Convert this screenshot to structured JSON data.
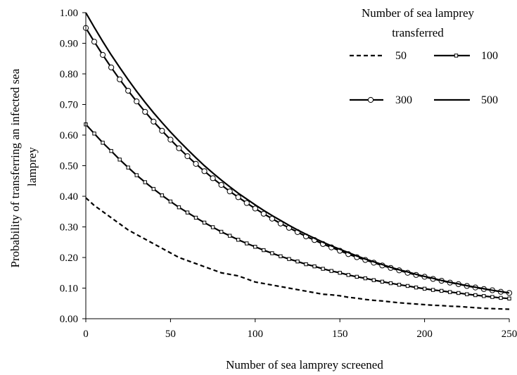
{
  "chart_data": {
    "type": "line",
    "title": "",
    "xlabel": "Number of sea lamprey screened",
    "ylabel": "Probability of transferring an infected sea lamprey",
    "xlim": [
      0,
      250
    ],
    "ylim": [
      0,
      1
    ],
    "xticks": [
      "0",
      "50",
      "100",
      "150",
      "200",
      "250"
    ],
    "yticks": [
      "0.00",
      "0.10",
      "0.20",
      "0.30",
      "0.40",
      "0.50",
      "0.60",
      "0.70",
      "0.80",
      "0.90",
      "1.00"
    ],
    "grid": false,
    "legend": {
      "title_lines": [
        "Number of sea lamprey",
        "transferred"
      ],
      "placement": "top-right"
    },
    "x": [
      0,
      5,
      10,
      15,
      20,
      25,
      30,
      35,
      40,
      45,
      50,
      55,
      60,
      65,
      70,
      75,
      80,
      85,
      90,
      95,
      100,
      105,
      110,
      115,
      120,
      125,
      130,
      135,
      140,
      145,
      150,
      155,
      160,
      165,
      170,
      175,
      180,
      185,
      190,
      195,
      200,
      205,
      210,
      215,
      220,
      225,
      230,
      235,
      240,
      245,
      250
    ],
    "series": [
      {
        "name": "50",
        "style": "dashed",
        "marker": "none",
        "values": [
          0.395,
          0.37,
          0.35,
          0.33,
          0.31,
          0.29,
          0.275,
          0.26,
          0.245,
          0.23,
          0.215,
          0.2,
          0.19,
          0.18,
          0.17,
          0.16,
          0.15,
          0.145,
          0.14,
          0.13,
          0.12,
          0.115,
          0.11,
          0.105,
          0.1,
          0.095,
          0.09,
          0.085,
          0.08,
          0.078,
          0.075,
          0.07,
          0.067,
          0.063,
          0.06,
          0.058,
          0.055,
          0.052,
          0.05,
          0.048,
          0.046,
          0.044,
          0.043,
          0.041,
          0.04,
          0.038,
          0.036,
          0.034,
          0.033,
          0.032,
          0.031
        ]
      },
      {
        "name": "100",
        "style": "solid",
        "marker": "square",
        "values": [
          0.635,
          0.605,
          0.575,
          0.548,
          0.52,
          0.494,
          0.469,
          0.446,
          0.424,
          0.403,
          0.383,
          0.364,
          0.347,
          0.33,
          0.314,
          0.299,
          0.284,
          0.271,
          0.258,
          0.246,
          0.235,
          0.224,
          0.214,
          0.204,
          0.195,
          0.187,
          0.178,
          0.171,
          0.163,
          0.156,
          0.15,
          0.143,
          0.137,
          0.132,
          0.126,
          0.121,
          0.116,
          0.111,
          0.107,
          0.102,
          0.098,
          0.094,
          0.091,
          0.087,
          0.084,
          0.08,
          0.077,
          0.074,
          0.071,
          0.068,
          0.066
        ]
      },
      {
        "name": "300",
        "style": "solid",
        "marker": "circle",
        "values": [
          0.95,
          0.905,
          0.862,
          0.821,
          0.782,
          0.745,
          0.71,
          0.676,
          0.644,
          0.614,
          0.585,
          0.557,
          0.531,
          0.506,
          0.482,
          0.459,
          0.437,
          0.416,
          0.397,
          0.378,
          0.36,
          0.343,
          0.327,
          0.311,
          0.297,
          0.283,
          0.269,
          0.257,
          0.244,
          0.233,
          0.222,
          0.211,
          0.201,
          0.192,
          0.183,
          0.174,
          0.166,
          0.158,
          0.15,
          0.143,
          0.137,
          0.13,
          0.124,
          0.118,
          0.113,
          0.107,
          0.102,
          0.097,
          0.093,
          0.088,
          0.084
        ]
      },
      {
        "name": "500",
        "style": "solid",
        "marker": "none",
        "values": [
          1.0,
          0.952,
          0.906,
          0.862,
          0.821,
          0.781,
          0.743,
          0.707,
          0.673,
          0.641,
          0.61,
          0.581,
          0.553,
          0.526,
          0.5,
          0.476,
          0.453,
          0.431,
          0.41,
          0.391,
          0.372,
          0.354,
          0.337,
          0.321,
          0.305,
          0.29,
          0.276,
          0.263,
          0.25,
          0.238,
          0.227,
          0.216,
          0.205,
          0.195,
          0.186,
          0.177,
          0.168,
          0.16,
          0.153,
          0.145,
          0.138,
          0.132,
          0.125,
          0.119,
          0.114,
          0.108,
          0.103,
          0.098,
          0.093,
          0.089,
          0.084
        ]
      }
    ]
  }
}
